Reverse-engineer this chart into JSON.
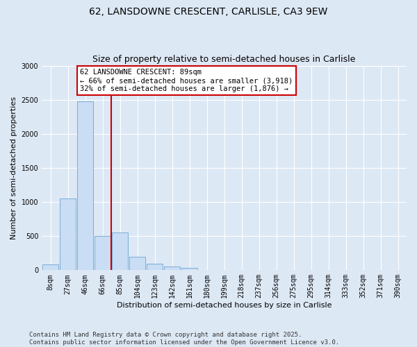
{
  "title": "62, LANSDOWNE CRESCENT, CARLISLE, CA3 9EW",
  "subtitle": "Size of property relative to semi-detached houses in Carlisle",
  "xlabel": "Distribution of semi-detached houses by size in Carlisle",
  "ylabel": "Number of semi-detached properties",
  "categories": [
    "8sqm",
    "27sqm",
    "46sqm",
    "66sqm",
    "85sqm",
    "104sqm",
    "123sqm",
    "142sqm",
    "161sqm",
    "180sqm",
    "199sqm",
    "218sqm",
    "237sqm",
    "256sqm",
    "275sqm",
    "295sqm",
    "314sqm",
    "333sqm",
    "352sqm",
    "371sqm",
    "390sqm"
  ],
  "values": [
    80,
    1050,
    2480,
    500,
    550,
    200,
    100,
    50,
    30,
    5,
    3,
    0,
    0,
    0,
    0,
    0,
    0,
    0,
    0,
    0,
    0
  ],
  "bar_color": "#c9ddf5",
  "bar_edge_color": "#7aadd4",
  "vline_color": "#cc0000",
  "vline_x_index": 3.5,
  "annotation_text": "62 LANSDOWNE CRESCENT: 89sqm\n← 66% of semi-detached houses are smaller (3,918)\n32% of semi-detached houses are larger (1,876) →",
  "annotation_box_facecolor": "#ffffff",
  "annotation_box_edgecolor": "#cc0000",
  "ylim": [
    0,
    3000
  ],
  "yticks": [
    0,
    500,
    1000,
    1500,
    2000,
    2500,
    3000
  ],
  "background_color": "#dde8f5",
  "grid_color": "#ffffff",
  "title_fontsize": 10,
  "subtitle_fontsize": 9,
  "axis_label_fontsize": 8,
  "tick_fontsize": 7,
  "annotation_fontsize": 7.5,
  "footer_fontsize": 6.5,
  "footer1": "Contains HM Land Registry data © Crown copyright and database right 2025.",
  "footer2": "Contains public sector information licensed under the Open Government Licence v3.0."
}
